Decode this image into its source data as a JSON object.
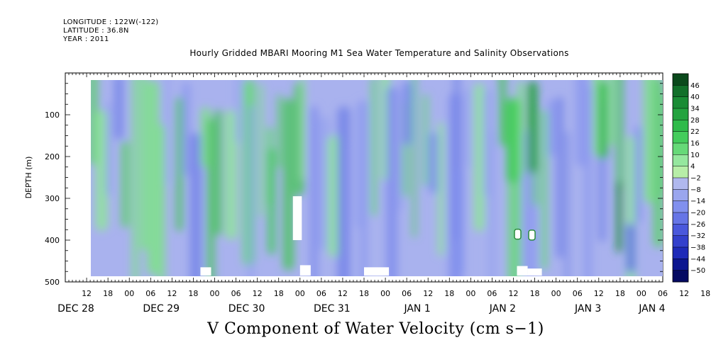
{
  "header": {
    "longitude": "LONGITUDE : 122W(-122)",
    "latitude": "LATITUDE : 36.8N",
    "year": "YEAR : 2011"
  },
  "title": "Hourly Gridded MBARI Mooring M1 Sea Water Temperature and Salinity Observations",
  "footer": "V Component of Water Velocity (cm s−1)",
  "chart_data": {
    "type": "heatmap",
    "title": "Hourly Gridded MBARI Mooring M1 Sea Water Temperature and Salinity Observations",
    "variable": "V Component of Water Velocity (cm s−1)",
    "ylabel": "DEPTH (m)",
    "ylim": [
      500,
      0
    ],
    "yticks": [
      "100",
      "200",
      "300",
      "400",
      "500"
    ],
    "xlim_hours": [
      0,
      168
    ],
    "xtick_labels": [
      "12",
      "18",
      "00",
      "06",
      "12",
      "18",
      "00",
      "06",
      "12",
      "18",
      "00",
      "06",
      "12",
      "18",
      "00",
      "06",
      "12",
      "18",
      "00",
      "06",
      "12",
      "18",
      "00",
      "06",
      "12",
      "18",
      "00",
      "06",
      "12",
      "18",
      "00",
      "06"
    ],
    "date_labels": [
      "DEC 28",
      "DEC 29",
      "DEC 30",
      "DEC 31",
      "JAN  1",
      "JAN  2",
      "JAN  3",
      "JAN  4"
    ],
    "colorbar": {
      "levels": [
        "46",
        "40",
        "34",
        "28",
        "22",
        "16",
        "10",
        "4",
        "−2",
        "−8",
        "−14",
        "−20",
        "−26",
        "−32",
        "−38",
        "−44",
        "−50"
      ],
      "colors": [
        "#0b4a1c",
        "#12702a",
        "#1a8c35",
        "#23a33f",
        "#2fbb4a",
        "#44cc5c",
        "#66d978",
        "#95e79e",
        "#b7eea8",
        "#b0b8ee",
        "#9aa6ee",
        "#8190ee",
        "#6675e6",
        "#4a58dc",
        "#3340cc",
        "#1e2ab8",
        "#0c1690",
        "#050a62"
      ]
    },
    "data_extent": {
      "start_hour": 6,
      "end_hour": 168,
      "top_depth_m": 20,
      "bottom_depth_m": 485
    },
    "data_coverage": "contoured field of V velocity, mostly between −20 and +28 cm/s; strongest positive (>34) near JAN 2 12–00 at 50–150 m; strongest negative (<−32) near JAN 3 18 at 450 m"
  }
}
